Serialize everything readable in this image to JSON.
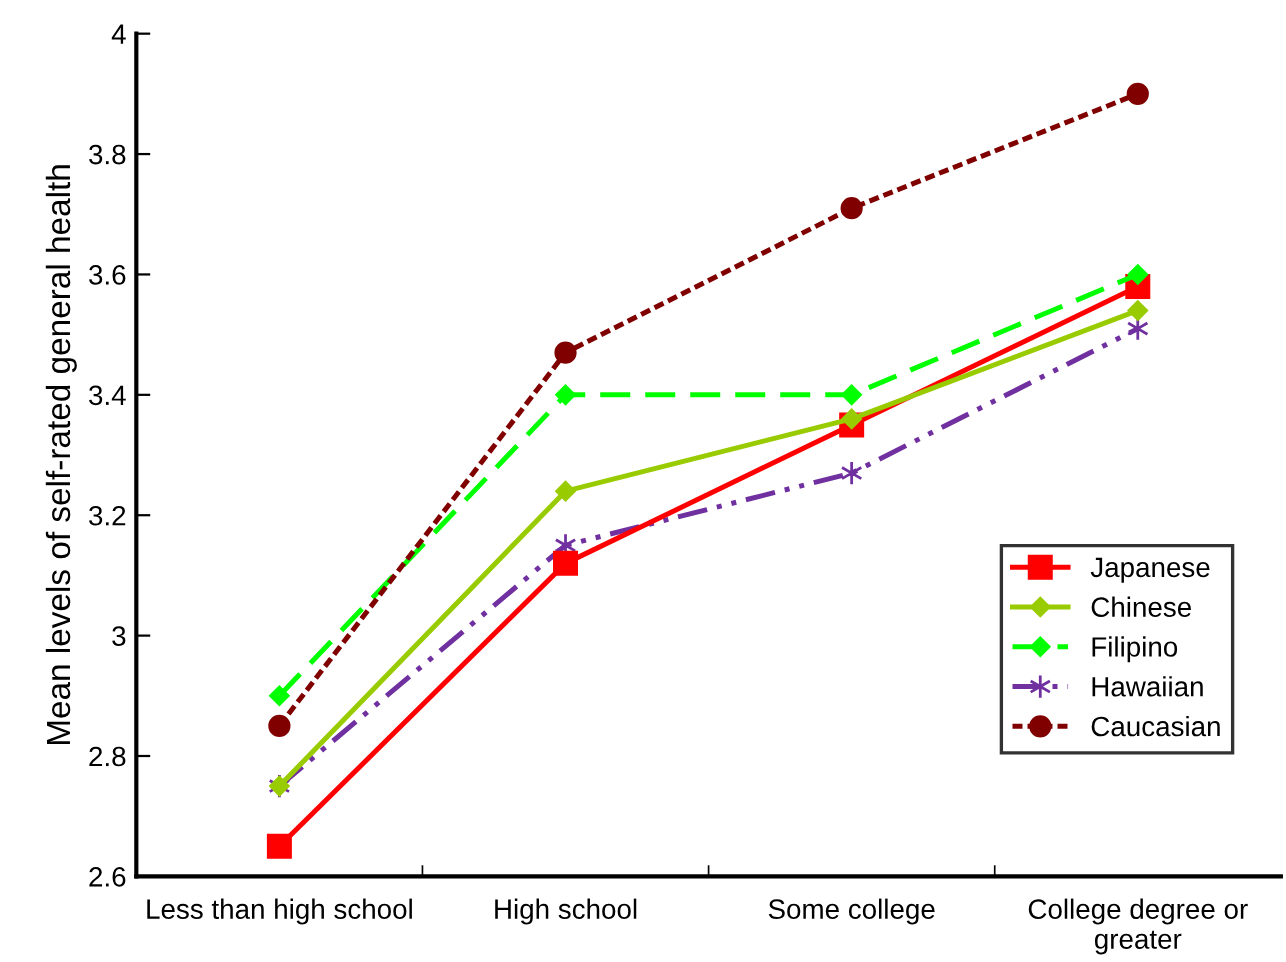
{
  "chart_data": {
    "type": "line",
    "ylabel": "Mean levels of self-rated general health",
    "categories": [
      "Less than high school",
      "High school",
      "Some college",
      "College degree or\ngreater"
    ],
    "series": [
      {
        "name": "Japanese",
        "color": "#ff0000",
        "marker": "square",
        "line_style": "solid",
        "values": [
          2.65,
          3.12,
          3.35,
          3.58
        ]
      },
      {
        "name": "Chinese",
        "color": "#99cc00",
        "marker": "diamond",
        "line_style": "solid",
        "values": [
          2.75,
          3.24,
          3.36,
          3.54
        ]
      },
      {
        "name": "Filipino",
        "color": "#00ff00",
        "marker": "diamond",
        "line_style": "dashed",
        "values": [
          2.9,
          3.4,
          3.4,
          3.6
        ]
      },
      {
        "name": "Hawaiian",
        "color": "#7030a0",
        "marker": "cross",
        "line_style": "dashdot",
        "values": [
          2.75,
          3.15,
          3.27,
          3.51
        ]
      },
      {
        "name": "Caucasian",
        "color": "#800000",
        "marker": "circle",
        "line_style": "dotted",
        "values": [
          2.85,
          3.47,
          3.71,
          3.9
        ]
      }
    ],
    "ylim": [
      2.6,
      4
    ],
    "yticks": [
      2.6,
      2.8,
      3,
      3.2,
      3.4,
      3.6,
      3.8,
      4
    ],
    "grid": false,
    "legend": "lower right"
  }
}
